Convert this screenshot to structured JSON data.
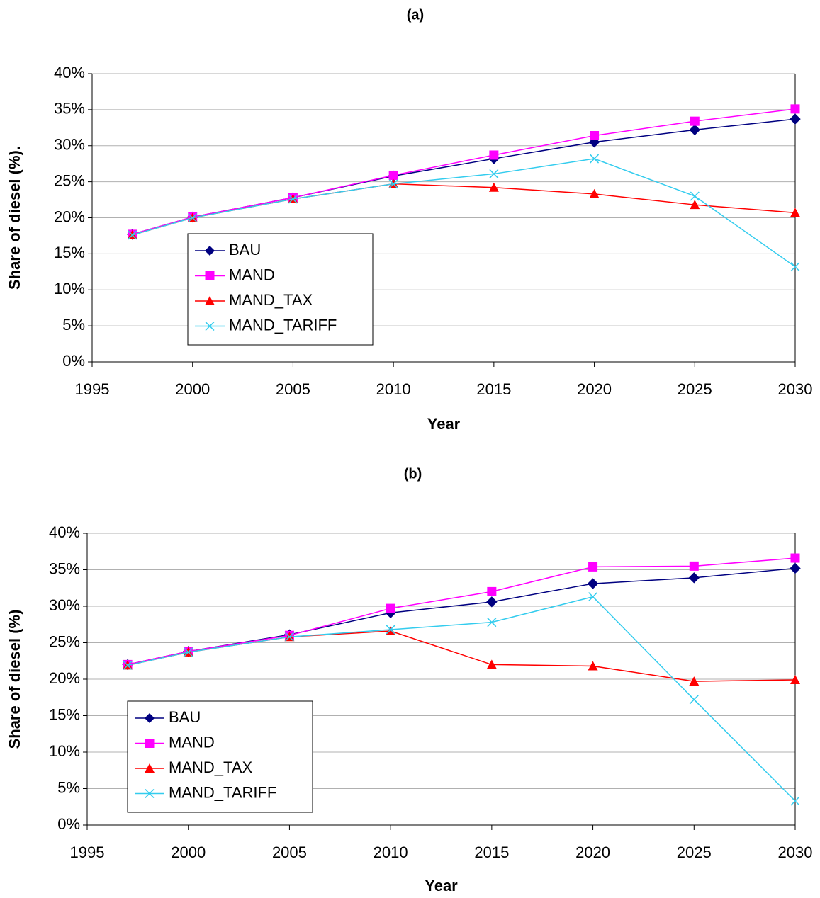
{
  "chart_data": [
    {
      "type": "line",
      "title": "(a)",
      "xlabel": "Year",
      "ylabel": "Share of diesel (%).",
      "x": [
        1997,
        2000,
        2005,
        2010,
        2015,
        2020,
        2025,
        2030
      ],
      "xlim": [
        1995,
        2030
      ],
      "xticks": [
        1995,
        2000,
        2005,
        2010,
        2015,
        2020,
        2025,
        2030
      ],
      "ylim": [
        0,
        40
      ],
      "yticks": [
        {
          "value": 0,
          "label": "0%"
        },
        {
          "value": 5,
          "label": "5%"
        },
        {
          "value": 10,
          "label": "10%"
        },
        {
          "value": 15,
          "label": "15%"
        },
        {
          "value": 20,
          "label": "20%"
        },
        {
          "value": 25,
          "label": "25%"
        },
        {
          "value": 30,
          "label": "30%"
        },
        {
          "value": 35,
          "label": "35%"
        },
        {
          "value": 40,
          "label": "40%"
        }
      ],
      "grid": true,
      "series": [
        {
          "name": "BAU",
          "color": "#000080",
          "marker": "diamond",
          "values": [
            17.7,
            20.1,
            22.8,
            25.8,
            28.2,
            30.5,
            32.2,
            33.7
          ]
        },
        {
          "name": "MAND",
          "color": "#ff00ff",
          "marker": "square",
          "values": [
            17.7,
            20.1,
            22.8,
            25.9,
            28.7,
            31.4,
            33.4,
            35.1
          ]
        },
        {
          "name": "MAND_TAX",
          "color": "#ff0000",
          "marker": "triangle",
          "values": [
            17.6,
            20.0,
            22.6,
            24.7,
            24.2,
            23.3,
            21.8,
            20.7
          ]
        },
        {
          "name": "MAND_TARIFF",
          "color": "#33ccee",
          "marker": "x",
          "values": [
            17.6,
            20.0,
            22.6,
            24.7,
            26.1,
            28.2,
            23.0,
            13.2
          ]
        }
      ]
    },
    {
      "type": "line",
      "title": "(b)",
      "xlabel": "Year",
      "ylabel": "Share of diesel (%)",
      "x": [
        1997,
        2000,
        2005,
        2010,
        2015,
        2020,
        2025,
        2030
      ],
      "xlim": [
        1995,
        2030
      ],
      "xticks": [
        1995,
        2000,
        2005,
        2010,
        2015,
        2020,
        2025,
        2030
      ],
      "ylim": [
        0,
        40
      ],
      "yticks": [
        {
          "value": 0,
          "label": "0%"
        },
        {
          "value": 5,
          "label": "5%"
        },
        {
          "value": 10,
          "label": "10%"
        },
        {
          "value": 15,
          "label": "15%"
        },
        {
          "value": 20,
          "label": "20%"
        },
        {
          "value": 25,
          "label": "25%"
        },
        {
          "value": 30,
          "label": "30%"
        },
        {
          "value": 35,
          "label": "35%"
        },
        {
          "value": 40,
          "label": "40%"
        }
      ],
      "grid": true,
      "series": [
        {
          "name": "BAU",
          "color": "#000080",
          "marker": "diamond",
          "values": [
            22.0,
            23.8,
            26.1,
            29.1,
            30.6,
            33.1,
            33.9,
            35.2
          ]
        },
        {
          "name": "MAND",
          "color": "#ff00ff",
          "marker": "square",
          "values": [
            22.0,
            23.8,
            26.0,
            29.7,
            32.0,
            35.4,
            35.5,
            36.6
          ]
        },
        {
          "name": "MAND_TAX",
          "color": "#ff0000",
          "marker": "triangle",
          "values": [
            21.9,
            23.7,
            25.8,
            26.6,
            22.0,
            21.8,
            19.7,
            19.9
          ]
        },
        {
          "name": "MAND_TARIFF",
          "color": "#33ccee",
          "marker": "x",
          "values": [
            21.9,
            23.7,
            25.8,
            26.8,
            27.8,
            31.3,
            17.2,
            3.3
          ]
        }
      ]
    }
  ]
}
